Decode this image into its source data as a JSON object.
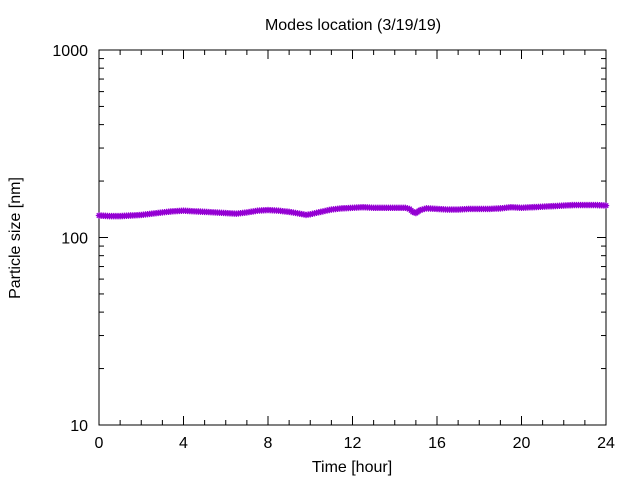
{
  "chart_data": {
    "type": "line",
    "title": "Modes location (3/19/19)",
    "xlabel": "Time [hour]",
    "ylabel": "Particle size [nm]",
    "xlim": [
      0,
      24
    ],
    "ylim": [
      10,
      1000
    ],
    "yscale": "log",
    "grid": false,
    "legend": "none",
    "xticks": [
      0,
      4,
      8,
      12,
      16,
      20,
      24
    ],
    "xtick_labels": [
      "0",
      "4",
      "8",
      "12",
      "16",
      "20",
      "24"
    ],
    "yticks": [
      10,
      100,
      1000
    ],
    "ytick_labels": [
      "10",
      "100",
      "1000"
    ],
    "series": [
      {
        "color": "#9400d3",
        "marker": "star",
        "x": [
          0,
          0.5,
          1,
          1.5,
          2,
          2.5,
          3,
          3.5,
          4,
          4.5,
          5,
          5.5,
          6,
          6.5,
          7,
          7.5,
          8,
          8.5,
          9,
          9.5,
          9.8,
          10,
          10.5,
          11,
          11.5,
          12,
          12.5,
          13,
          13.5,
          14,
          14.5,
          14.7,
          14.85,
          15,
          15.2,
          15.5,
          16,
          16.5,
          17,
          17.5,
          18,
          18.5,
          19,
          19.5,
          20,
          20.5,
          21,
          21.5,
          22,
          22.5,
          23,
          23.5,
          24
        ],
        "y": [
          131,
          130,
          130,
          131,
          132,
          134,
          136,
          138,
          139,
          138,
          137,
          136,
          135,
          134,
          136,
          139,
          140,
          139,
          137,
          134,
          132,
          133,
          137,
          141,
          143,
          144,
          145,
          144,
          144,
          144,
          144,
          142,
          137,
          135,
          140,
          143,
          142,
          141,
          141,
          142,
          142,
          142,
          143,
          145,
          144,
          145,
          146,
          147,
          148,
          149,
          149,
          149,
          148
        ]
      }
    ]
  }
}
